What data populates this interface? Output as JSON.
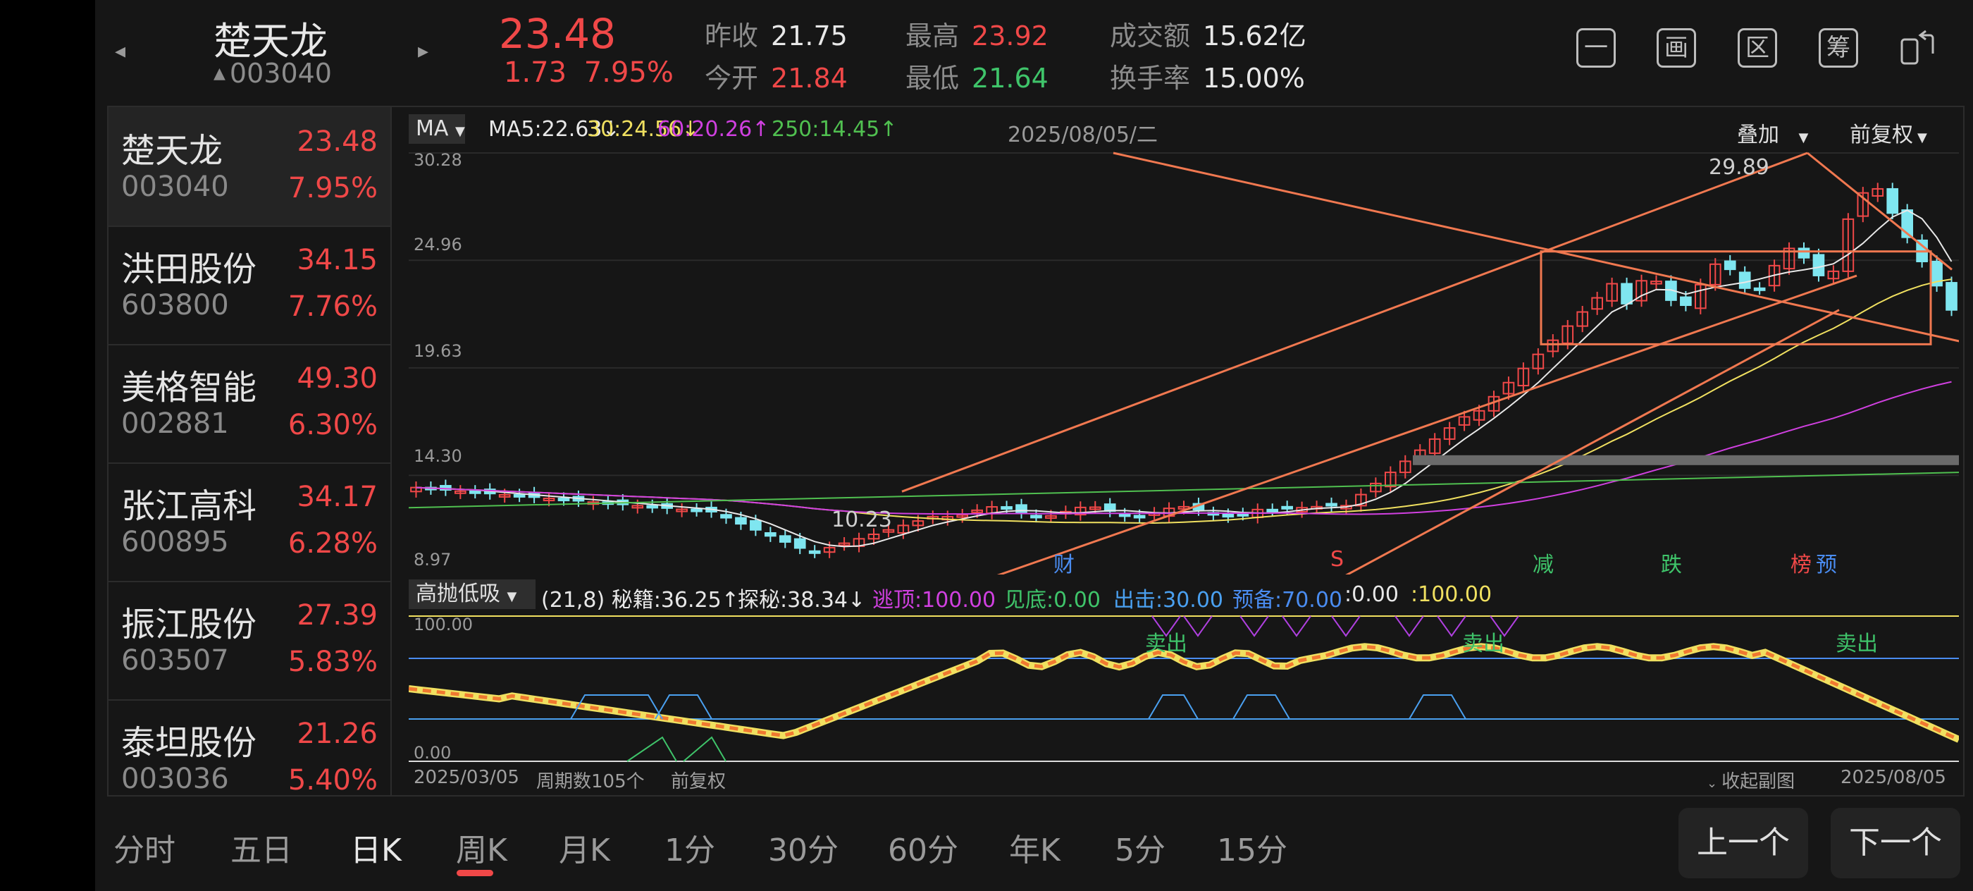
{
  "header": {
    "name": "楚天龙",
    "code": "003040",
    "price": "23.48",
    "change": "1.73",
    "change_pct": "7.95%",
    "stats": [
      {
        "label": "昨收",
        "value": "21.75",
        "color": "white"
      },
      {
        "label": "今开",
        "value": "21.84",
        "color": "red"
      },
      {
        "label": "最高",
        "value": "23.92",
        "color": "red"
      },
      {
        "label": "最低",
        "value": "21.64",
        "color": "green"
      },
      {
        "label": "成交额",
        "value": "15.62亿",
        "color": "white"
      },
      {
        "label": "换手率",
        "value": "15.00%",
        "color": "white"
      }
    ],
    "icons": [
      {
        "name": "minimize-icon",
        "glyph": "一"
      },
      {
        "name": "draw-icon",
        "glyph": "画"
      },
      {
        "name": "range-icon",
        "glyph": "区"
      },
      {
        "name": "chips-icon",
        "glyph": "筹"
      },
      {
        "name": "switch-screen-icon",
        "glyph": ""
      }
    ]
  },
  "watchlist": [
    {
      "name": "楚天龙",
      "code": "003040",
      "price": "23.48",
      "pct": "7.95%"
    },
    {
      "name": "洪田股份",
      "code": "603800",
      "price": "34.15",
      "pct": "7.76%"
    },
    {
      "name": "美格智能",
      "code": "002881",
      "price": "49.30",
      "pct": "6.30%"
    },
    {
      "name": "张江高科",
      "code": "600895",
      "price": "34.17",
      "pct": "6.28%"
    },
    {
      "name": "振江股份",
      "code": "603507",
      "price": "27.39",
      "pct": "5.83%"
    },
    {
      "name": "泰坦股份",
      "code": "003036",
      "price": "21.26",
      "pct": "5.40%"
    }
  ],
  "chart": {
    "ma_button": "MA",
    "ma_items": [
      {
        "text": "MA5:22.63↓",
        "color": "#e8e8e8"
      },
      {
        "text": "30:24.56↓",
        "color": "#f0e060"
      },
      {
        "text": "60:20.26↑",
        "color": "#d040e0"
      },
      {
        "text": "250:14.45↑",
        "color": "#50c050"
      }
    ],
    "date": "2025/08/05/二",
    "overlay": "叠加",
    "adjust": "前复权",
    "y_labels": [
      "30.28",
      "24.96",
      "19.63",
      "14.30",
      "8.97"
    ],
    "high_label": "29.89",
    "low_label": "10.23",
    "markers": [
      {
        "text": "财",
        "color": "#4a8cf0"
      },
      {
        "text": "S",
        "color": "#f04848"
      },
      {
        "text": "减",
        "color": "#3fc46a"
      },
      {
        "text": "跌",
        "color": "#3fc46a"
      },
      {
        "text": "榜",
        "color": "#f04848"
      },
      {
        "text": "预",
        "color": "#4a8cf0"
      }
    ],
    "indicator_button": "高抛低吸",
    "indicator_items": [
      {
        "text": "(21,8) 秘籍:36.25↑",
        "color": "#e8e8e8"
      },
      {
        "text": "探秘:38.34↓",
        "color": "#e8e8e8"
      },
      {
        "text": "逃顶:100.00",
        "color": "#d040e0"
      },
      {
        "text": "见底:0.00",
        "color": "#3fc46a"
      },
      {
        "text": "出击:30.00",
        "color": "#4aa0f0"
      },
      {
        "text": "预备:70.00",
        "color": "#4a8cf0"
      },
      {
        "text": ":0.00",
        "color": "#e8e8e8"
      },
      {
        "text": ":100.00",
        "color": "#f0e060"
      }
    ],
    "sub_y_labels": [
      "100.00",
      "0.00"
    ],
    "sell_labels": [
      "卖出",
      "卖出",
      "卖出"
    ],
    "footer_start": "2025/03/05",
    "footer_count": "周期数105个",
    "footer_adjust": "前复权",
    "footer_collapse": "收起副图",
    "footer_end": "2025/08/05"
  },
  "period_tabs": [
    "分时",
    "五日",
    "日K",
    "周K",
    "月K",
    "1分",
    "30分",
    "60分",
    "年K",
    "5分",
    "15分"
  ],
  "active_tab": "日K",
  "buttons": {
    "prev": "上一个",
    "next": "下一个"
  },
  "colors": {
    "up": "#f04848",
    "down": "#7fe6f0",
    "ma5": "#e8e8e8",
    "ma30": "#f0e060",
    "ma60": "#d040e0",
    "ma250": "#50c050",
    "trend": "#f07850"
  }
}
